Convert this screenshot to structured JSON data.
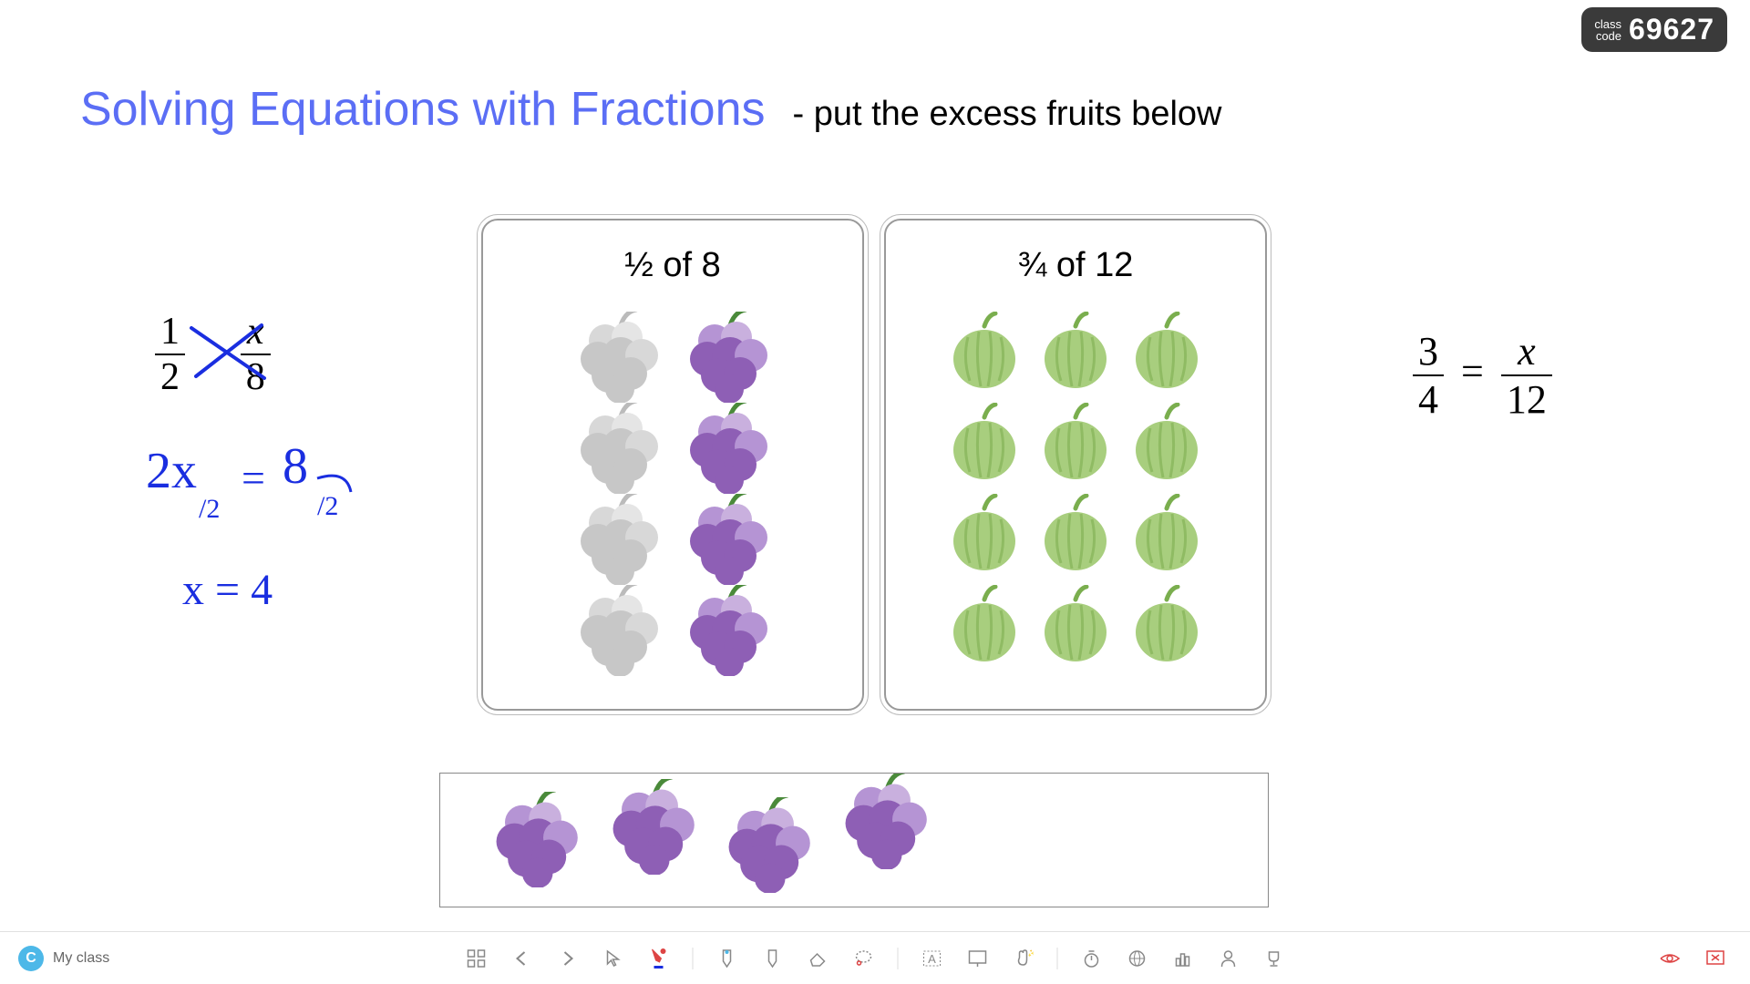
{
  "class_code": {
    "label": "class\ncode",
    "value": "69627"
  },
  "title": "Solving Equations with Fractions",
  "subtitle": "- put the excess fruits below",
  "equation_left": {
    "n1": "1",
    "d1": "2",
    "n2": "x",
    "d2": "8"
  },
  "equation_right": {
    "n1": "3",
    "d1": "4",
    "eq": "=",
    "n2": "x",
    "d2": "12"
  },
  "handwritten": {
    "line1": "2x/2 = 8/2",
    "line2": "x = 4"
  },
  "card1": {
    "title": "½ of 8",
    "rows": 4,
    "cols": 2,
    "ghost_column": 0
  },
  "card2": {
    "title": "¾ of 12",
    "rows": 4,
    "cols": 3
  },
  "excess_grapes_count": 4,
  "footer": {
    "my_class": "My class"
  },
  "colors": {
    "title": "#5b6ef5",
    "handwritten": "#1a2ee0",
    "grape_main": "#8e5fb5",
    "grape_light": "#b594d4",
    "grape_highlight": "#c9b0de",
    "grape_ghost": "#c7c7c7",
    "grape_ghost_light": "#d8d8d8",
    "grape_stem": "#4a8a3a",
    "melon_body": "#a8ce7e",
    "melon_stem": "#7aae4e",
    "melon_stripe": "#8fbb63"
  },
  "toolbar_icons": [
    "grid-icon",
    "arrow-left-icon",
    "arrow-right-icon",
    "pointer-icon",
    "pen-icon",
    "sep",
    "highlighter1-icon",
    "highlighter2-icon",
    "eraser-icon",
    "lasso-icon",
    "sep",
    "text-icon",
    "present-icon",
    "hand-icon",
    "sep",
    "timer-icon",
    "globe-icon",
    "poll-icon",
    "person-icon",
    "trophy-icon"
  ],
  "right_icons": [
    "eye-icon",
    "close-icon"
  ]
}
